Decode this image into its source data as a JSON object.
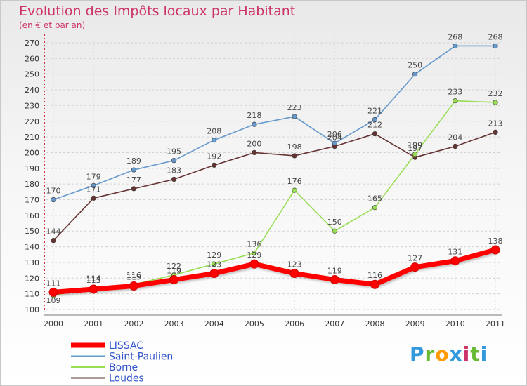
{
  "title": "Evolution des Impôts locaux par Habitant",
  "subtitle": "(en € et par an)",
  "logo_text": "Proxiti",
  "chart_data": {
    "type": "line",
    "title": "Evolution des Impôts locaux par Habitant",
    "subtitle": "(en € et par an)",
    "xlabel": "",
    "ylabel": "",
    "ylim": [
      100,
      270
    ],
    "ytick_step": 10,
    "x": [
      "2000",
      "2001",
      "2002",
      "2003",
      "2004",
      "2005",
      "2006",
      "2007",
      "2008",
      "2009",
      "2010",
      "2011"
    ],
    "legend_position": "bottom-left",
    "series": [
      {
        "name": "Loudes",
        "color": "#663333",
        "values": [
          144,
          171,
          177,
          183,
          192,
          200,
          198,
          204,
          212,
          197,
          204,
          213
        ]
      },
      {
        "name": "Borne",
        "color": "#99dd55",
        "values": [
          109,
          114,
          116,
          122,
          129,
          136,
          176,
          150,
          165,
          199,
          233,
          232
        ]
      },
      {
        "name": "Saint-Paulien",
        "color": "#6699cc",
        "values": [
          170,
          179,
          189,
          195,
          208,
          218,
          223,
          206,
          221,
          250,
          268,
          268
        ]
      },
      {
        "name": "LISSAC",
        "color": "#ff0000",
        "values": [
          111,
          113,
          115,
          119,
          123,
          129,
          123,
          119,
          116,
          127,
          131,
          138
        ]
      }
    ]
  }
}
